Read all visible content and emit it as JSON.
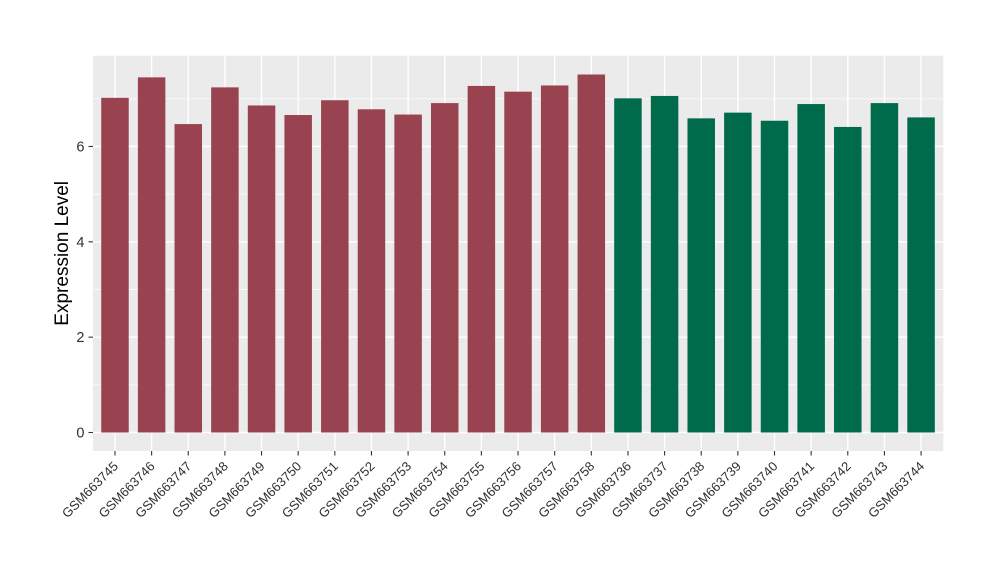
{
  "chart_data": {
    "type": "bar",
    "title": "",
    "xlabel": "",
    "ylabel": "Expression Level",
    "ylim": [
      -0.39,
      7.9
    ],
    "yticks_major": [
      0,
      2,
      4,
      6
    ],
    "yticks_minor": [
      1,
      3,
      5,
      7
    ],
    "grid": "on",
    "legend_position": "none",
    "panel_bg": "#EBEBEB",
    "grid_color": "#FFFFFF",
    "axis_text_color": "#303030",
    "axis_title_color": "#000000",
    "group_colors": {
      "groupA": "#9A4350",
      "groupB": "#006B4A"
    },
    "categories": [
      "GSM663745",
      "GSM663746",
      "GSM663747",
      "GSM663748",
      "GSM663749",
      "GSM663750",
      "GSM663751",
      "GSM663752",
      "GSM663753",
      "GSM663754",
      "GSM663755",
      "GSM663756",
      "GSM663757",
      "GSM663758",
      "GSM663736",
      "GSM663737",
      "GSM663738",
      "GSM663739",
      "GSM663740",
      "GSM663741",
      "GSM663742",
      "GSM663743",
      "GSM663744"
    ],
    "bars": [
      {
        "label": "GSM663745",
        "value": 7.02,
        "group": "groupA"
      },
      {
        "label": "GSM663746",
        "value": 7.45,
        "group": "groupA"
      },
      {
        "label": "GSM663747",
        "value": 6.47,
        "group": "groupA"
      },
      {
        "label": "GSM663748",
        "value": 7.24,
        "group": "groupA"
      },
      {
        "label": "GSM663749",
        "value": 6.86,
        "group": "groupA"
      },
      {
        "label": "GSM663750",
        "value": 6.66,
        "group": "groupA"
      },
      {
        "label": "GSM663751",
        "value": 6.97,
        "group": "groupA"
      },
      {
        "label": "GSM663752",
        "value": 6.78,
        "group": "groupA"
      },
      {
        "label": "GSM663753",
        "value": 6.67,
        "group": "groupA"
      },
      {
        "label": "GSM663754",
        "value": 6.91,
        "group": "groupA"
      },
      {
        "label": "GSM663755",
        "value": 7.27,
        "group": "groupA"
      },
      {
        "label": "GSM663756",
        "value": 7.15,
        "group": "groupA"
      },
      {
        "label": "GSM663757",
        "value": 7.28,
        "group": "groupA"
      },
      {
        "label": "GSM663758",
        "value": 7.51,
        "group": "groupA"
      },
      {
        "label": "GSM663736",
        "value": 7.01,
        "group": "groupB"
      },
      {
        "label": "GSM663737",
        "value": 7.06,
        "group": "groupB"
      },
      {
        "label": "GSM663738",
        "value": 6.59,
        "group": "groupB"
      },
      {
        "label": "GSM663739",
        "value": 6.71,
        "group": "groupB"
      },
      {
        "label": "GSM663740",
        "value": 6.54,
        "group": "groupB"
      },
      {
        "label": "GSM663741",
        "value": 6.89,
        "group": "groupB"
      },
      {
        "label": "GSM663742",
        "value": 6.41,
        "group": "groupB"
      },
      {
        "label": "GSM663743",
        "value": 6.91,
        "group": "groupB"
      },
      {
        "label": "GSM663744",
        "value": 6.61,
        "group": "groupB"
      }
    ]
  }
}
